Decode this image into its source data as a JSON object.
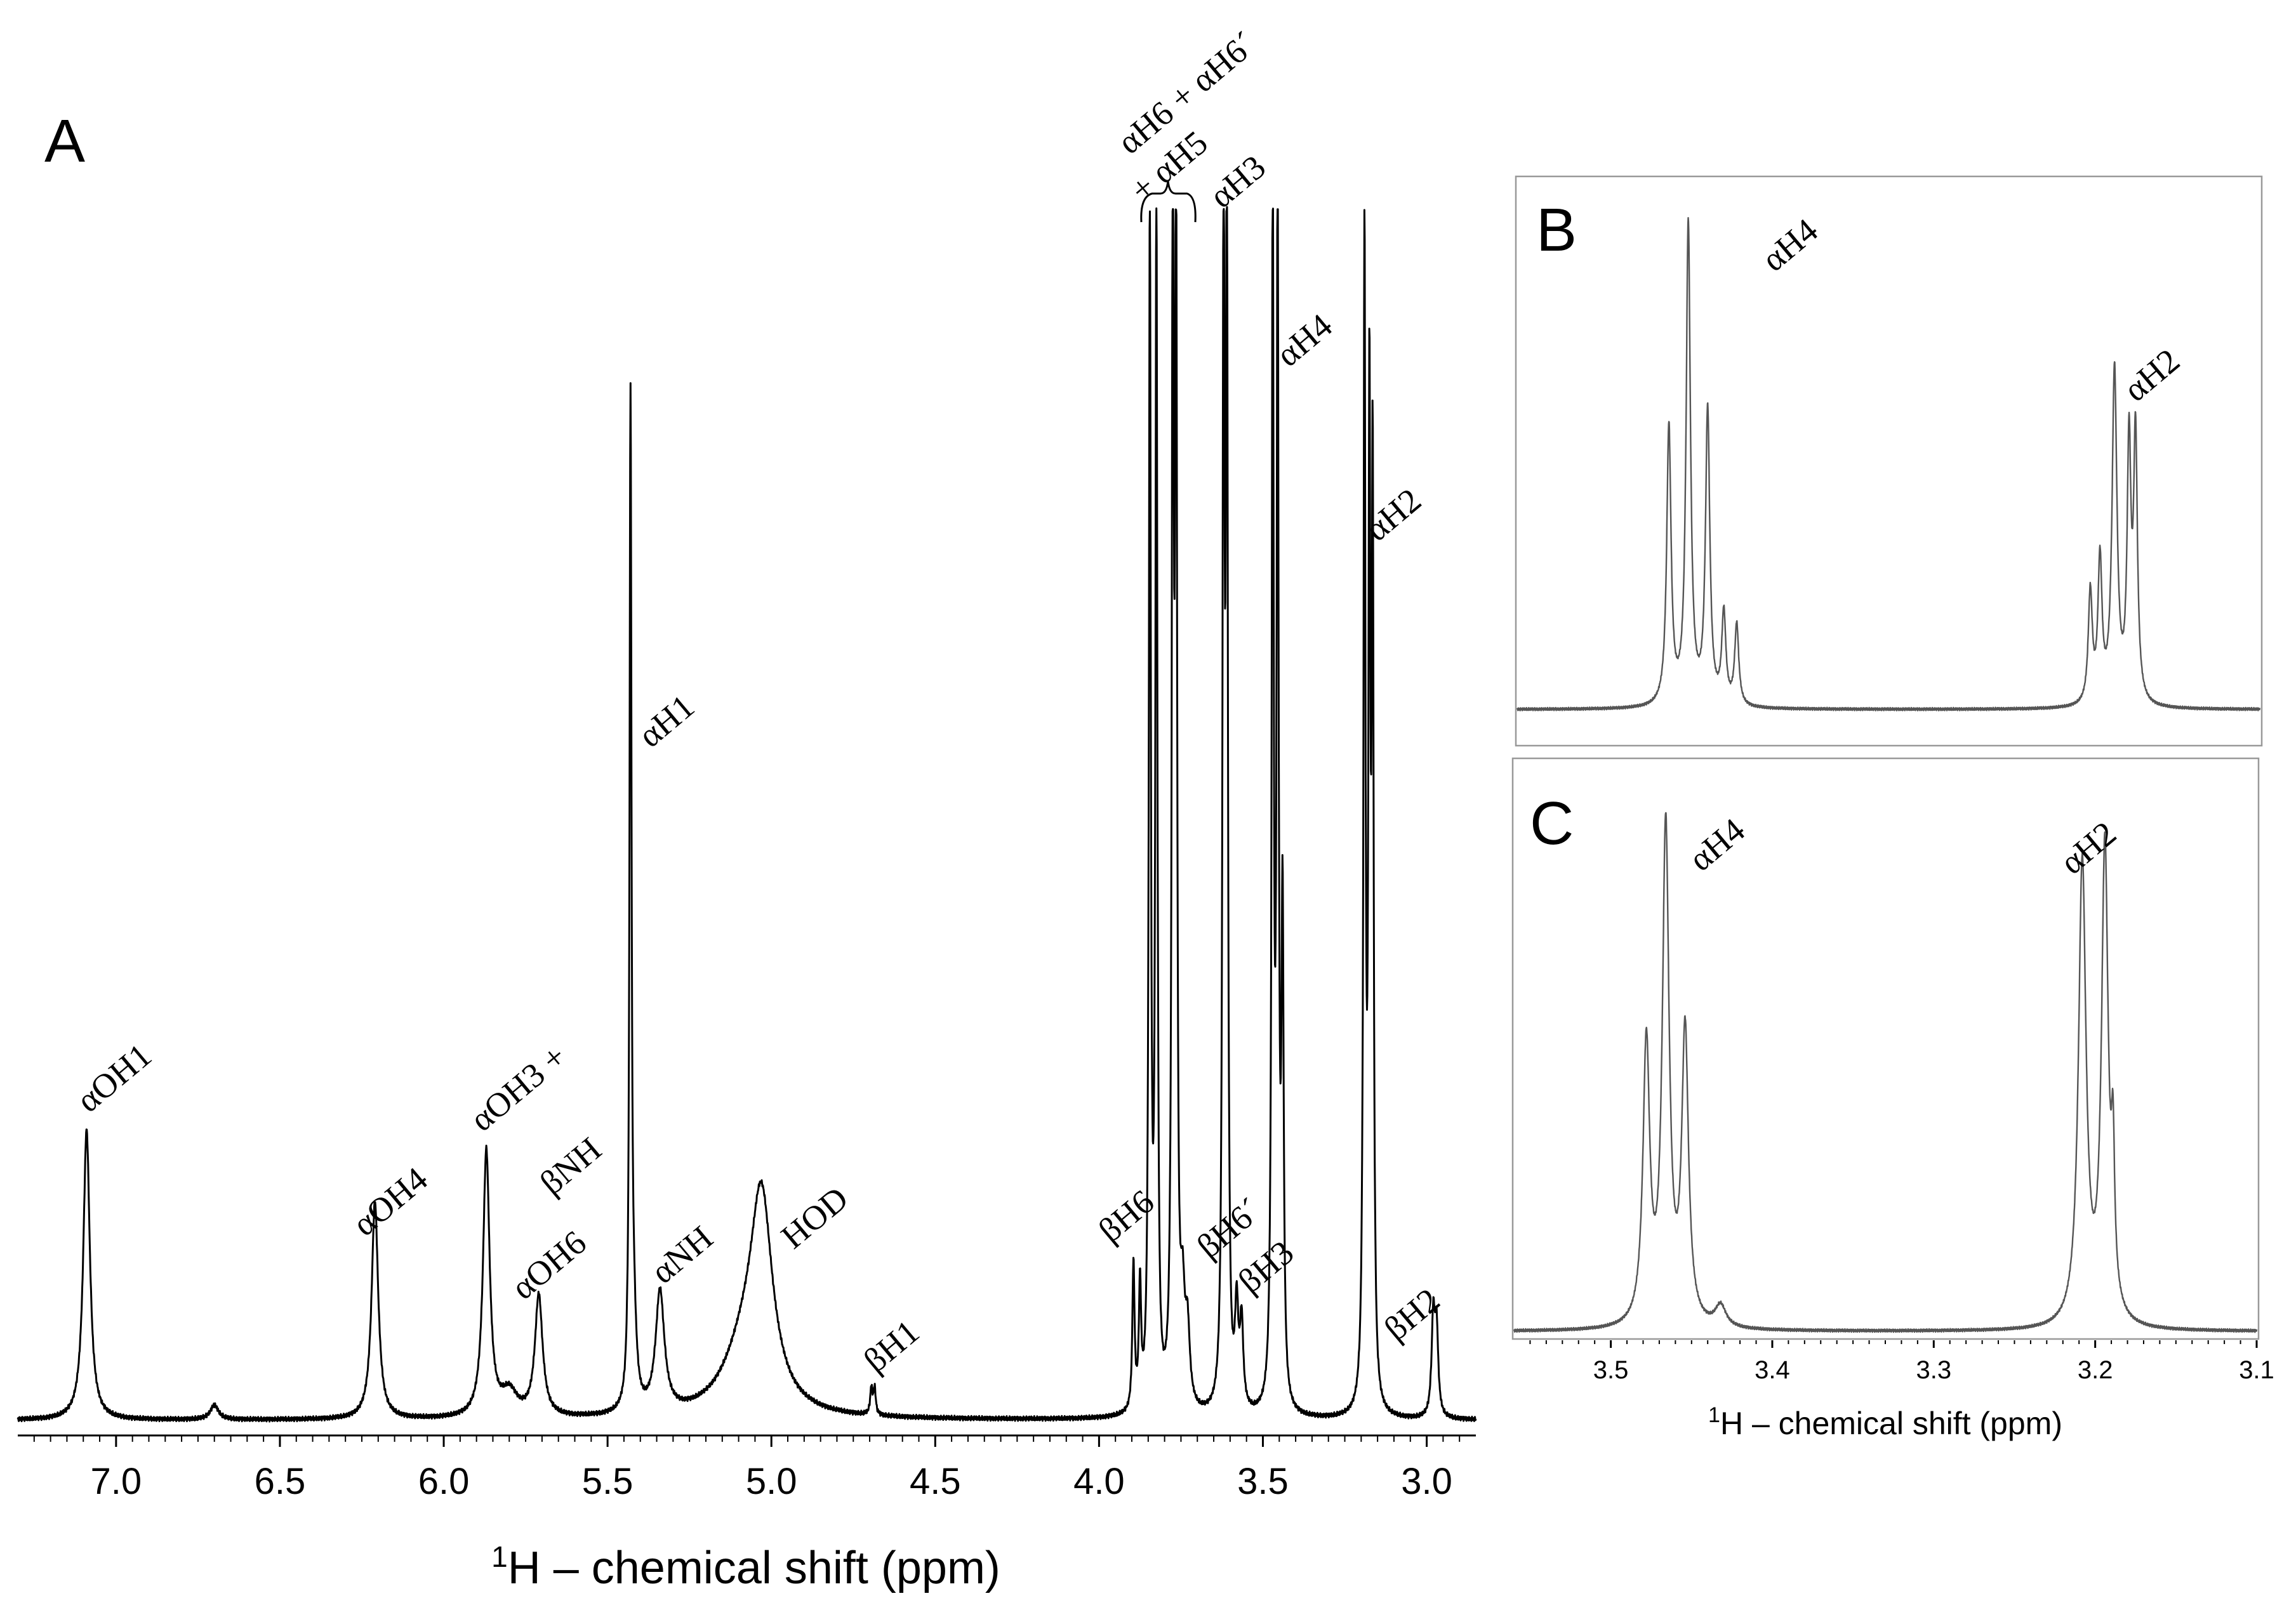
{
  "chart_data": [
    {
      "panel": "A",
      "type": "line",
      "title": "",
      "xlabel": "H – chemical shift (ppm)",
      "xlabel_superscript": "1",
      "xlim": [
        7.3,
        2.85
      ],
      "ylim": [
        0,
        1.0
      ],
      "xticks": [
        7.0,
        6.5,
        6.0,
        5.5,
        5.0,
        4.5,
        4.0,
        3.5,
        3.0
      ],
      "xtick_labels": [
        "7.0",
        "6.5",
        "6.0",
        "5.5",
        "5.0",
        "4.5",
        "4.0",
        "3.5",
        "3.0"
      ],
      "peaks": [
        {
          "ppm": 7.09,
          "height": 0.24,
          "width": 0.012
        },
        {
          "ppm": 6.7,
          "height": 0.012,
          "width": 0.015
        },
        {
          "ppm": 6.21,
          "height": 0.18,
          "width": 0.012
        },
        {
          "ppm": 5.87,
          "height": 0.22,
          "width": 0.012
        },
        {
          "ppm": 5.8,
          "height": 0.02,
          "width": 0.03
        },
        {
          "ppm": 5.71,
          "height": 0.1,
          "width": 0.014
        },
        {
          "ppm": 5.43,
          "height": 0.82,
          "width": 0.0035
        },
        {
          "ppm": 5.42,
          "height": 0.06,
          "width": 0.01
        },
        {
          "ppm": 5.34,
          "height": 0.1,
          "width": 0.016
        },
        {
          "ppm": 5.03,
          "height": 0.16,
          "width": 0.04
        },
        {
          "ppm": 5.08,
          "height": 0.05,
          "width": 0.08
        },
        {
          "ppm": 4.695,
          "height": 0.022,
          "width": 0.004
        },
        {
          "ppm": 4.685,
          "height": 0.022,
          "width": 0.004
        },
        {
          "ppm": 3.895,
          "height": 0.12,
          "width": 0.004
        },
        {
          "ppm": 3.875,
          "height": 0.1,
          "width": 0.004
        },
        {
          "ppm": 3.845,
          "height": 1.0,
          "width": 0.0035
        },
        {
          "ppm": 3.825,
          "height": 1.0,
          "width": 0.0035
        },
        {
          "ppm": 3.775,
          "height": 1.0,
          "width": 0.0035
        },
        {
          "ppm": 3.765,
          "height": 1.0,
          "width": 0.0035
        },
        {
          "ppm": 3.745,
          "height": 0.08,
          "width": 0.008
        },
        {
          "ppm": 3.73,
          "height": 0.06,
          "width": 0.008
        },
        {
          "ppm": 3.62,
          "height": 1.0,
          "width": 0.0035
        },
        {
          "ppm": 3.61,
          "height": 1.0,
          "width": 0.0035
        },
        {
          "ppm": 3.58,
          "height": 0.08,
          "width": 0.006
        },
        {
          "ppm": 3.565,
          "height": 0.07,
          "width": 0.006
        },
        {
          "ppm": 3.47,
          "height": 1.0,
          "width": 0.0035
        },
        {
          "ppm": 3.455,
          "height": 1.0,
          "width": 0.0035
        },
        {
          "ppm": 3.44,
          "height": 0.4,
          "width": 0.004
        },
        {
          "ppm": 3.19,
          "height": 0.96,
          "width": 0.0035
        },
        {
          "ppm": 3.175,
          "height": 0.78,
          "width": 0.0035
        },
        {
          "ppm": 3.165,
          "height": 0.74,
          "width": 0.0035
        },
        {
          "ppm": 2.98,
          "height": 0.08,
          "width": 0.006
        },
        {
          "ppm": 2.97,
          "height": 0.07,
          "width": 0.006
        }
      ],
      "annotations": [
        {
          "text": "αOH1",
          "ppm": 7.09
        },
        {
          "text": "αOH4",
          "ppm": 6.21
        },
        {
          "text": "αOH3 +",
          "ppm": 5.87
        },
        {
          "text": "βNH",
          "ppm": 5.87
        },
        {
          "text": "αOH6",
          "ppm": 5.71
        },
        {
          "text": "αH1",
          "ppm": 5.43
        },
        {
          "text": "αNH",
          "ppm": 5.34
        },
        {
          "text": "HOD",
          "ppm": 5.03
        },
        {
          "text": "βH1",
          "ppm": 4.69
        },
        {
          "text": "αH6 + αH6´",
          "ppm": 3.8
        },
        {
          "text": "+ αH5",
          "ppm": 3.8
        },
        {
          "text": "αH3",
          "ppm": 3.615
        },
        {
          "text": "αH4",
          "ppm": 3.46
        },
        {
          "text": "αH2",
          "ppm": 3.18
        },
        {
          "text": "βH6",
          "ppm": 3.89
        },
        {
          "text": "βH6´",
          "ppm": 3.74
        },
        {
          "text": "βH3",
          "ppm": 3.57
        },
        {
          "text": "βH2",
          "ppm": 2.975
        }
      ]
    },
    {
      "panel": "B",
      "type": "line",
      "xlim": [
        3.56,
        3.1
      ],
      "ylim": [
        0,
        1.0
      ],
      "peaks": [
        {
          "ppm": 3.466,
          "height": 0.55,
          "width": 0.0016
        },
        {
          "ppm": 3.454,
          "height": 0.95,
          "width": 0.0016
        },
        {
          "ppm": 3.442,
          "height": 0.58,
          "width": 0.0016
        },
        {
          "ppm": 3.432,
          "height": 0.18,
          "width": 0.0015
        },
        {
          "ppm": 3.424,
          "height": 0.16,
          "width": 0.0015
        },
        {
          "ppm": 3.205,
          "height": 0.22,
          "width": 0.0015
        },
        {
          "ppm": 3.199,
          "height": 0.28,
          "width": 0.0015
        },
        {
          "ppm": 3.19,
          "height": 0.66,
          "width": 0.0018
        },
        {
          "ppm": 3.181,
          "height": 0.5,
          "width": 0.0014
        },
        {
          "ppm": 3.177,
          "height": 0.52,
          "width": 0.0014
        }
      ],
      "annotations": [
        {
          "text": "αH4",
          "ppm": 3.454
        },
        {
          "text": "αH2",
          "ppm": 3.19
        }
      ]
    },
    {
      "panel": "C",
      "type": "line",
      "xlabel": "H – chemical shift (ppm)",
      "xlabel_superscript": "1",
      "xlim": [
        3.56,
        3.1
      ],
      "ylim": [
        0,
        1.0
      ],
      "xticks": [
        3.5,
        3.4,
        3.3,
        3.2,
        3.1
      ],
      "xtick_labels": [
        "3.5",
        "3.4",
        "3.3",
        "3.2",
        "3.1"
      ],
      "peaks": [
        {
          "ppm": 3.478,
          "height": 0.52,
          "width": 0.0025
        },
        {
          "ppm": 3.466,
          "height": 0.92,
          "width": 0.0025
        },
        {
          "ppm": 3.454,
          "height": 0.54,
          "width": 0.0025
        },
        {
          "ppm": 3.432,
          "height": 0.04,
          "width": 0.004
        },
        {
          "ppm": 3.208,
          "height": 0.86,
          "width": 0.0028
        },
        {
          "ppm": 3.194,
          "height": 0.88,
          "width": 0.0025
        },
        {
          "ppm": 3.189,
          "height": 0.25,
          "width": 0.0012
        }
      ],
      "annotations": [
        {
          "text": "αH4",
          "ppm": 3.466
        },
        {
          "text": "αH2",
          "ppm": 3.2
        }
      ]
    }
  ],
  "panel_labels": {
    "a": "A",
    "b": "B",
    "c": "C"
  }
}
